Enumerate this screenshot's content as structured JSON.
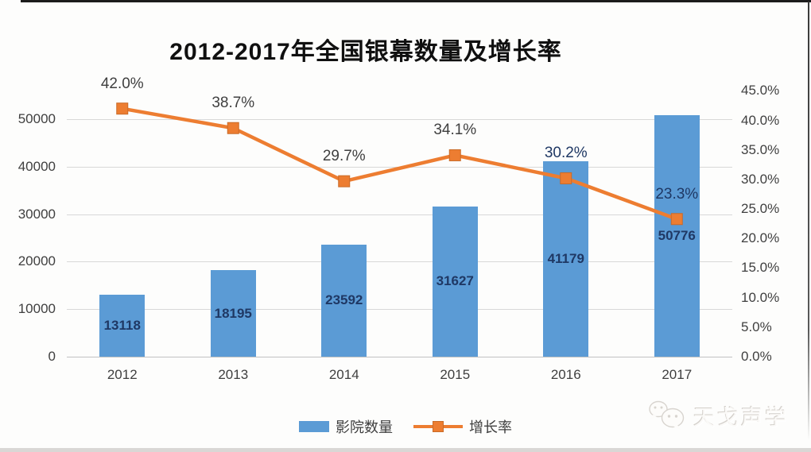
{
  "chart_data": {
    "type": "bar",
    "subtype": "combo-bar-line",
    "title": "2012-2017年全国银幕数量及增长率",
    "categories": [
      "2012",
      "2013",
      "2014",
      "2015",
      "2016",
      "2017"
    ],
    "series": [
      {
        "name": "影院数量",
        "type": "bar",
        "axis": "left",
        "color": "#5b9bd5",
        "label_color": "#1f3864",
        "values": [
          13118,
          18195,
          23592,
          31627,
          41179,
          50776
        ]
      },
      {
        "name": "增长率",
        "type": "line",
        "axis": "right",
        "color": "#ed7d31",
        "values_pct": [
          42.0,
          38.7,
          29.7,
          34.1,
          30.2,
          23.3
        ],
        "labels": [
          "42.0%",
          "38.7%",
          "29.7%",
          "34.1%",
          "30.2%",
          "23.3%"
        ],
        "label_colors": [
          "#3f3f3f",
          "#3f3f3f",
          "#3f3f3f",
          "#3f3f3f",
          "#1f3864",
          "#1f3864"
        ]
      }
    ],
    "left_axis": {
      "min": 0,
      "max": 50000,
      "ticks": [
        "50000",
        "40000",
        "30000",
        "20000",
        "10000",
        "0"
      ]
    },
    "right_axis": {
      "min": 0,
      "max": 45,
      "ticks": [
        "45.0%",
        "40.0%",
        "35.0%",
        "30.0%",
        "25.0%",
        "20.0%",
        "15.0%",
        "10.0%",
        "5.0%",
        "0.0%"
      ]
    },
    "gridlines": true,
    "legend_position": "bottom"
  },
  "watermark": {
    "text": "天戈声学",
    "icon": "wechat-icon"
  }
}
